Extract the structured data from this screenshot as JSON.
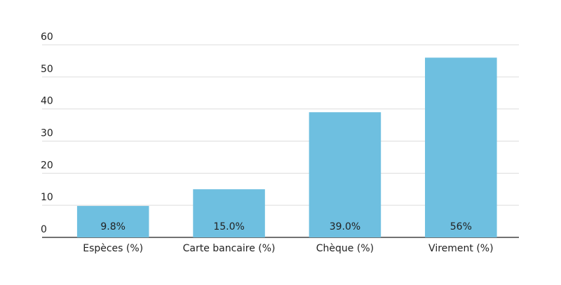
{
  "chart_data": {
    "type": "bar",
    "categories": [
      "Espèces (%)",
      "Carte bancaire (%)",
      "Chèque (%)",
      "Virement (%)"
    ],
    "values": [
      9.8,
      15.0,
      39.0,
      56
    ],
    "value_labels": [
      "9.8%",
      "15.0%",
      "39.0%",
      "56%"
    ],
    "color": "#6ebfe0",
    "ylim": [
      0,
      60
    ],
    "yticks": [
      0,
      10,
      20,
      30,
      40,
      50,
      60
    ],
    "grid": true
  }
}
